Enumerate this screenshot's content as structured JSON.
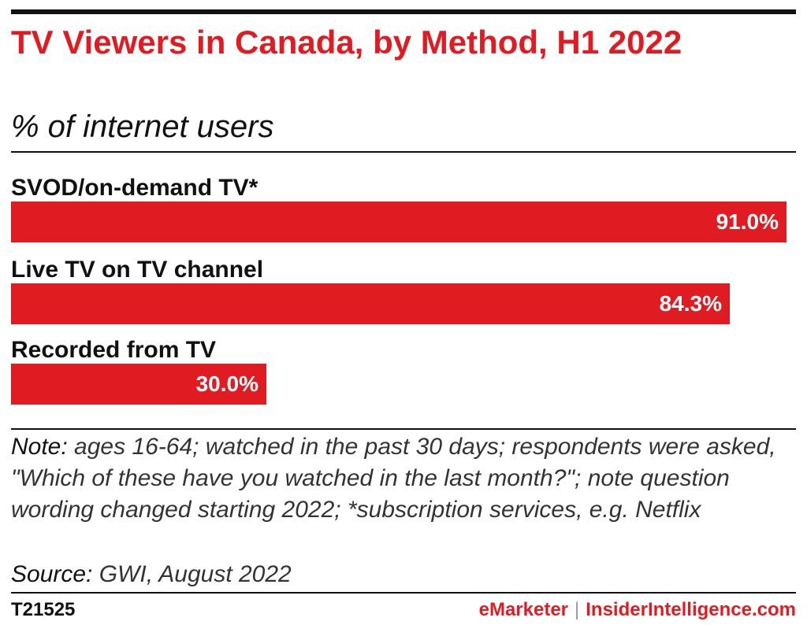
{
  "header": {
    "title": "TV Viewers in Canada, by Method, H1 2022",
    "subtitle": "% of internet users"
  },
  "chart_data": {
    "type": "bar",
    "orientation": "horizontal",
    "categories": [
      "SVOD/on-demand TV*",
      "Live TV on TV channel",
      "Recorded from TV"
    ],
    "values": [
      91.0,
      84.3,
      30.0
    ],
    "value_labels": [
      "91.0%",
      "84.3%",
      "30.0%"
    ],
    "xlim": [
      0,
      91.0
    ],
    "grid": false,
    "bar_color": "#e11b22"
  },
  "notes": {
    "note_lead": "Note:",
    "note_text": " ages 16-64; watched in the past 30 days; respondents were asked, \"Which of these have you watched in the last month?\"; note question wording changed starting 2022; *subscription services, e.g. Netflix",
    "source_lead": "Source:",
    "source_text": " GWI, August 2022"
  },
  "footer": {
    "chart_id": "T21525",
    "brand_left": "eMarketer",
    "separator": "|",
    "brand_right": "InsiderIntelligence.com"
  }
}
